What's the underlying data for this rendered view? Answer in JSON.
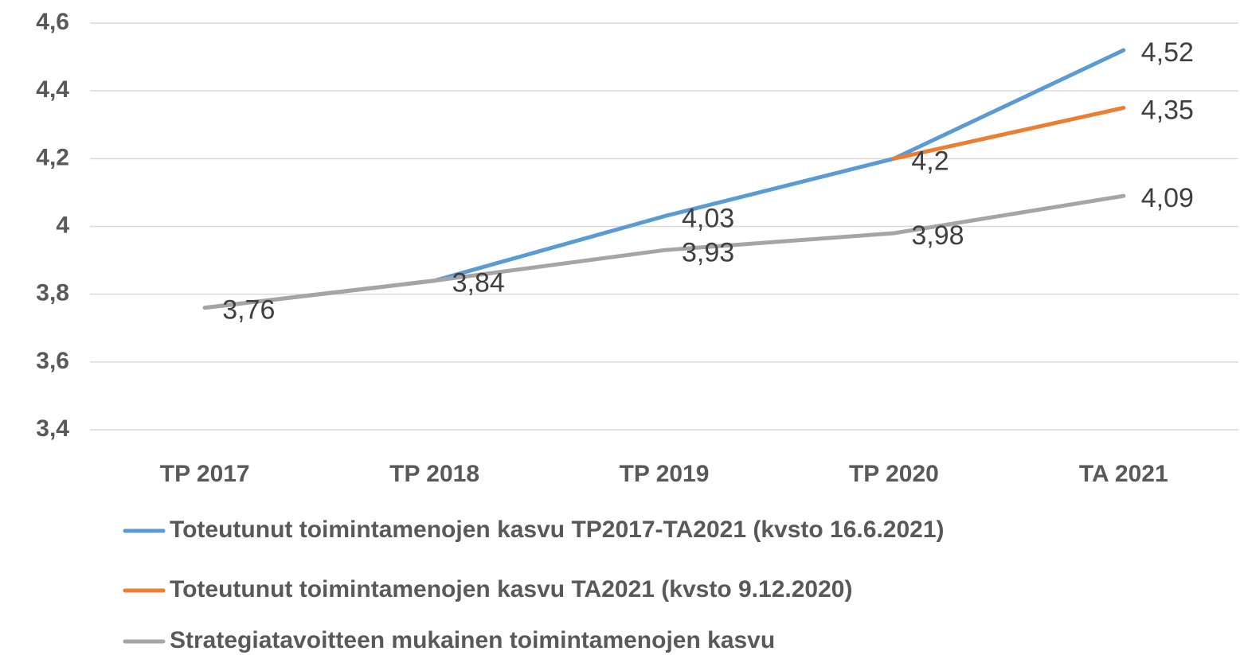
{
  "chart_data": {
    "type": "line",
    "categories": [
      "TP 2017",
      "TP 2018",
      "TP 2019",
      "TP 2020",
      "TA 2021"
    ],
    "series": [
      {
        "name": "Toteutunut toimintamenojen kasvu TP2017-TA2021 (kvsto 16.6.2021)",
        "color": "#5b9bd5",
        "values": [
          3.76,
          3.84,
          4.03,
          4.2,
          4.52
        ],
        "value_labels": [
          null,
          null,
          "4,03",
          null,
          "4,52"
        ]
      },
      {
        "name": "Toteutunut toimintamenojen kasvu TA2021 (kvsto 9.12.2020)",
        "color": "#ed7d31",
        "values": [
          null,
          null,
          null,
          4.2,
          4.35
        ],
        "value_labels": [
          null,
          null,
          null,
          "4,2",
          "4,35"
        ]
      },
      {
        "name": "Strategiatavoitteen mukainen toimintamenojen kasvu",
        "color": "#a5a5a5",
        "values": [
          3.76,
          3.84,
          3.93,
          3.98,
          4.09
        ],
        "value_labels": [
          "3,76",
          "3,84",
          "3,93",
          "3,98",
          "4,09"
        ]
      }
    ],
    "ylim": [
      3.4,
      4.6
    ],
    "yticks": [
      {
        "value": 3.4,
        "label": "3,4"
      },
      {
        "value": 3.6,
        "label": "3,6"
      },
      {
        "value": 3.8,
        "label": "3,8"
      },
      4,
      {
        "value": 4.2,
        "label": "4,2"
      },
      {
        "value": 4.4,
        "label": "4,4"
      },
      {
        "value": 4.6,
        "label": "4,6"
      }
    ],
    "grid": true,
    "legend": "bottom"
  }
}
